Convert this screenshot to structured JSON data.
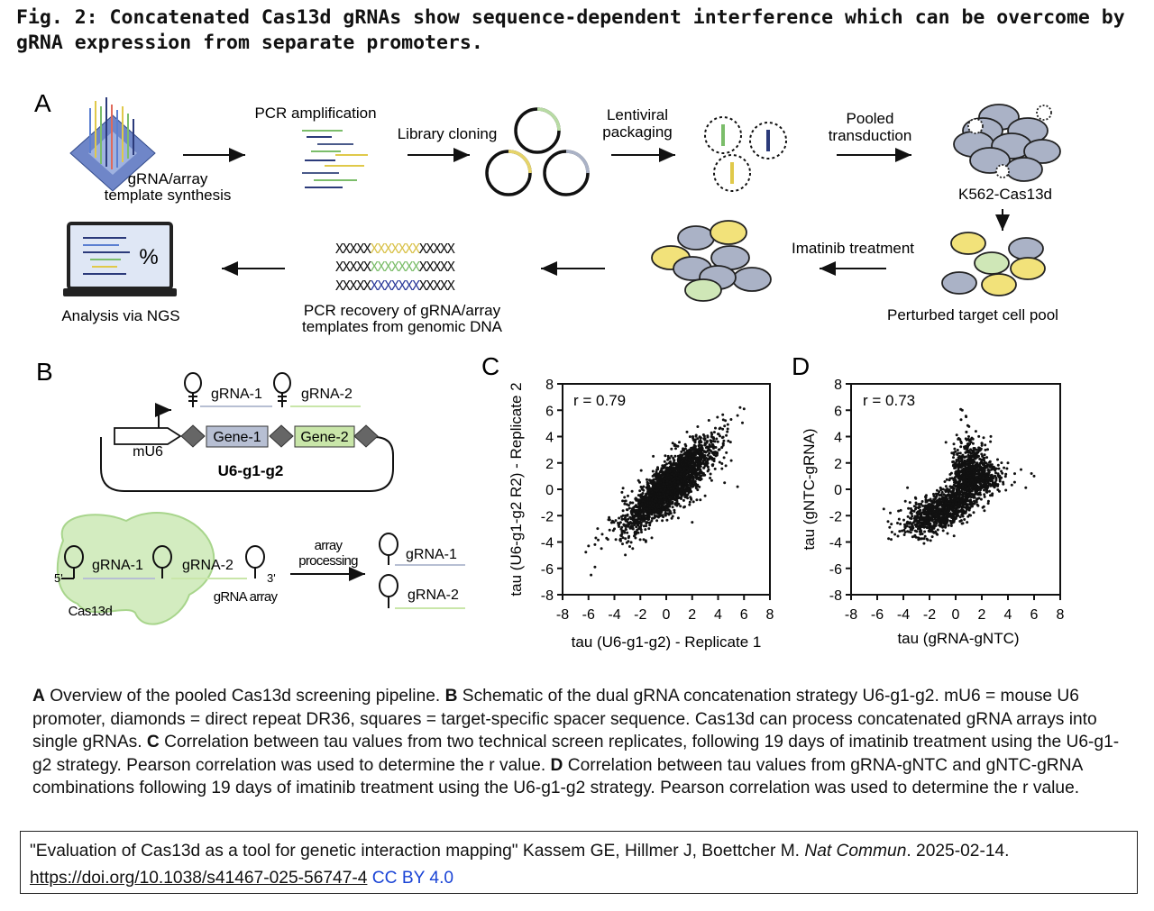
{
  "title": "Fig. 2: Concatenated Cas13d gRNAs show sequence-dependent interference which can be overcome by gRNA expression from separate promoters.",
  "panel_a": {
    "letter": "A",
    "synthesis_l1": "gRNA/array",
    "synthesis_l2": "template synthesis",
    "pcr_amp": "PCR amplification",
    "cloning": "Library cloning",
    "lenti_l1": "Lentiviral",
    "lenti_l2": "packaging",
    "pooled_l1": "Pooled",
    "pooled_l2": "transduction",
    "k562": "K562-Cas13d",
    "imatinib": "Imatinib treatment",
    "perturbed": "Perturbed target cell pool",
    "recovery_l1": "PCR recovery of gRNA/array",
    "recovery_l2": "templates from genomic DNA",
    "ngs": "Analysis via NGS",
    "percent": "%"
  },
  "panel_b": {
    "letter": "B",
    "grna1": "gRNA-1",
    "grna2": "gRNA-2",
    "gene1": "Gene-1",
    "gene2": "Gene-2",
    "mu6": "mU6",
    "construct": "U6-g1-g2",
    "five": "5'",
    "three": "3'",
    "array_label": "gRNA array",
    "cas13d": "Cas13d",
    "proc_l1": "array",
    "proc_l2": "processing"
  },
  "chart_data": [
    {
      "panel": "C",
      "type": "scatter",
      "annotation": "r = 0.79",
      "xlabel": "tau (U6-g1-g2) - Replicate 1",
      "ylabel": "tau (U6-g1-g2 R2) - Replicate 2",
      "xlim": [
        -8,
        8
      ],
      "ylim": [
        -8,
        8
      ],
      "xticks": [
        "-8",
        "-6",
        "-4",
        "-2",
        "0",
        "2",
        "4",
        "6",
        "8"
      ],
      "yticks": [
        "8",
        "6",
        "4",
        "2",
        "0",
        "-2",
        "-4",
        "-6",
        "-8"
      ],
      "points": [
        [
          -6,
          -4.3
        ],
        [
          -5.5,
          -4.2
        ],
        [
          -5.8,
          -6.5
        ],
        [
          -5.5,
          -5.9
        ],
        [
          -5,
          -4.5
        ],
        [
          -4.5,
          -3.8
        ],
        [
          -4,
          -3
        ],
        [
          -3.5,
          -3.5
        ],
        [
          -3,
          -2
        ],
        [
          -2.5,
          -2.2
        ],
        [
          -2,
          -1
        ],
        [
          -1.5,
          -1.5
        ],
        [
          -1,
          -0.2
        ],
        [
          -0.5,
          0.5
        ],
        [
          0,
          0
        ],
        [
          0.5,
          0.8
        ],
        [
          1,
          1.2
        ],
        [
          1.5,
          1.8
        ],
        [
          2,
          2.5
        ],
        [
          2.5,
          3
        ],
        [
          3,
          3.5
        ],
        [
          3.5,
          4
        ],
        [
          4,
          4.2
        ],
        [
          4.5,
          4.8
        ],
        [
          5,
          5.3
        ],
        [
          5.5,
          5.6
        ],
        [
          5.7,
          6.2
        ],
        [
          6,
          6.1
        ],
        [
          3,
          -0.5
        ],
        [
          4.5,
          0.5
        ],
        [
          5.5,
          0.2
        ],
        [
          0.5,
          3.5
        ],
        [
          -1,
          2.5
        ],
        [
          2,
          -2.5
        ]
      ],
      "n_generated_points": 2600
    },
    {
      "panel": "D",
      "type": "scatter",
      "annotation": "r = 0.73",
      "xlabel": "tau (gRNA-gNTC)",
      "ylabel": "tau (gNTC-gRNA)",
      "xlim": [
        -8,
        8
      ],
      "ylim": [
        -8,
        8
      ],
      "xticks": [
        "-8",
        "-6",
        "-4",
        "-2",
        "0",
        "2",
        "4",
        "6",
        "8"
      ],
      "yticks": [
        "8",
        "6",
        "4",
        "2",
        "0",
        "-2",
        "-4",
        "-6",
        "-8"
      ],
      "points": [
        [
          -5.5,
          -1.5
        ],
        [
          -5,
          -1.8
        ],
        [
          -4.2,
          -1.6
        ],
        [
          -3.5,
          -1
        ],
        [
          -3,
          -2.2
        ],
        [
          -2,
          -3
        ],
        [
          -1,
          -2.5
        ],
        [
          -0.5,
          -0.5
        ],
        [
          0,
          0.5
        ],
        [
          0.5,
          6
        ],
        [
          0.8,
          5.5
        ],
        [
          1,
          4
        ],
        [
          1.5,
          2.5
        ],
        [
          2,
          3.5
        ],
        [
          2.5,
          1.5
        ],
        [
          3,
          1
        ],
        [
          4,
          2
        ],
        [
          5,
          1.5
        ],
        [
          5.8,
          1.2
        ],
        [
          6,
          1
        ]
      ],
      "n_generated_points": 1900
    }
  ],
  "caption": {
    "a_letter": "A",
    "a_text": " Overview of the pooled Cas13d screening pipeline. ",
    "b_letter": "B",
    "b_text": " Schematic of the dual gRNA concatenation strategy U6-g1-g2. mU6 = mouse U6 promoter, diamonds = direct repeat DR36, squares = target-specific spacer sequence. Cas13d can process concatenated gRNA arrays into single gRNAs. ",
    "c_letter": "C",
    "c_text": " Correlation between tau values from two technical screen replicates, following 19 days of imatinib treatment using the U6-g1-g2 strategy. Pearson correlation was used to determine the r value. ",
    "d_letter": "D",
    "d_text": " Correlation between tau values from gRNA-gNTC and gNTC-gRNA combinations following 19 days of imatinib treatment using the U6-g1-g2 strategy. Pearson correlation was used to determine the r value."
  },
  "citation": {
    "text": "\"Evaluation of Cas13d as a tool for genetic interaction mapping\" Kassem GE, Hillmer J, Boettcher M. ",
    "journal": "Nat Commun",
    "date": ". 2025-02-14.",
    "doi": "https://doi.org/10.1038/s41467-025-56747-4",
    "license": "CC BY 4.0"
  },
  "colors": {
    "yellow": "#f2e27a",
    "green": "#cfe7b7",
    "gray_cell": "#aab2c6",
    "blue_dark": "#23305f",
    "gene_gray": "#b7bfd3",
    "gene_green": "#c9e6a9",
    "cas13d_green": "#d3ecc0"
  }
}
